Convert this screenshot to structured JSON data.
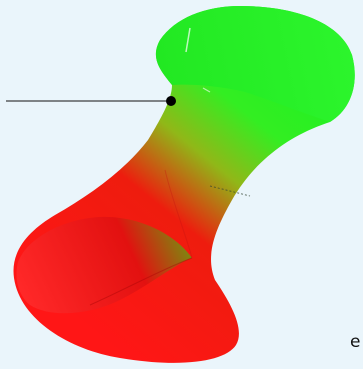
{
  "colors": {
    "background": "#eaf5fb",
    "surface_top": "#2bf22b",
    "surface_bottom": "#ff1010",
    "leader_line": "#111111",
    "point": "#000000"
  },
  "edge_text": "e"
}
